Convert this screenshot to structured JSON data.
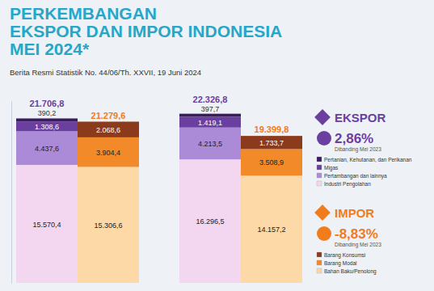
{
  "header": {
    "title_lines": [
      "PERKEMBANGAN",
      "EKSPOR DAN IMPOR INDONESIA",
      "MEI 2024*"
    ],
    "subtitle": "Berita Resmi Statistik No. 44/06/Th. XXVII, 19 Juni 2024"
  },
  "chart_data": [
    {
      "type": "bar",
      "title": "EKSPOR",
      "color": "#6a3fa0",
      "annotations": [
        "2,86%",
        "Dibanding Mei 2023"
      ],
      "categories": [
        null,
        null
      ],
      "stacked": true,
      "data_labels": true,
      "tick_labels": false,
      "ylim": [
        0,
        24000
      ],
      "yticks": [],
      "series": [
        {
          "name": "Industri Pengolahan",
          "color": "#f3d6ef",
          "values": [
            15570.4,
            16296.5
          ],
          "value_labels": [
            "15.570,4",
            "16.296,5"
          ]
        },
        {
          "name": "Pertambangan dan lainnya",
          "color": "#ab8ad8",
          "values": [
            4437.6,
            4213.5
          ],
          "value_labels": [
            "4.437,6",
            "4.213,5"
          ]
        },
        {
          "name": "Migas",
          "color": "#6b3fa0",
          "values": [
            1308.6,
            1419.1
          ],
          "value_labels": [
            "1.308,6",
            "1.419,1"
          ]
        },
        {
          "name": "Pertanian, Kehutanan, dan Perikanan",
          "color": "#3a1d5c",
          "values": [
            390.2,
            397.7
          ],
          "value_labels": [
            "390,2",
            "397,7"
          ]
        }
      ],
      "totals": {
        "values": [
          21706.8,
          22326.8
        ],
        "value_labels": [
          "21.706,8",
          "22.326,8"
        ]
      }
    },
    {
      "type": "bar",
      "title": "IMPOR",
      "color": "#f07c1e",
      "annotations": [
        "-8,83%",
        "Dibanding Mei 2023"
      ],
      "categories": [
        null,
        null
      ],
      "stacked": true,
      "data_labels": true,
      "tick_labels": false,
      "ylim": [
        0,
        24000
      ],
      "yticks": [],
      "series": [
        {
          "name": "Bahan Baku/Penolong",
          "color": "#fcd9a6",
          "values": [
            15306.6,
            14157.2
          ],
          "value_labels": [
            "15.306,6",
            "14.157,2"
          ]
        },
        {
          "name": "Barang Modal",
          "color": "#f28a2a",
          "values": [
            3904.4,
            3508.9
          ],
          "value_labels": [
            "3.904,4",
            "3.508,9"
          ]
        },
        {
          "name": "Barang Konsumsi",
          "color": "#8c3a1c",
          "values": [
            2068.6,
            1733.7
          ],
          "value_labels": [
            "2.068,6",
            "1.733,7"
          ]
        }
      ],
      "totals": {
        "values": [
          21279.6,
          19399.8
        ],
        "value_labels": [
          "21.279,6",
          "19.399,8"
        ]
      }
    }
  ]
}
